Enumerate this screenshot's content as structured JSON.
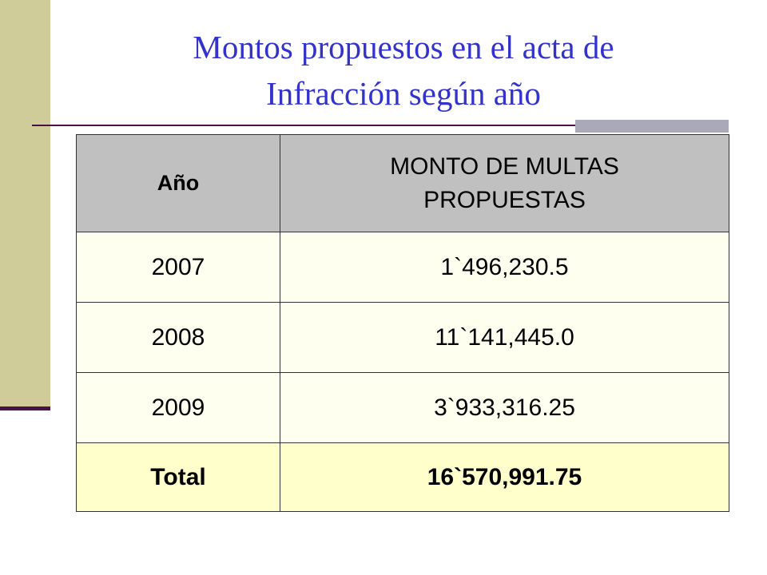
{
  "title": {
    "line1": "Montos propuestos en el acta  de",
    "line2": "Infracción según año"
  },
  "table": {
    "header": [
      "Año",
      "MONTO DE MULTAS PROPUESTAS"
    ],
    "rows": [
      [
        "2007",
        "1`496,230.5"
      ],
      [
        "2008",
        "11`141,445.0"
      ],
      [
        "2009",
        "3`933,316.25"
      ]
    ],
    "total": [
      "Total",
      "16`570,991.75"
    ]
  }
}
